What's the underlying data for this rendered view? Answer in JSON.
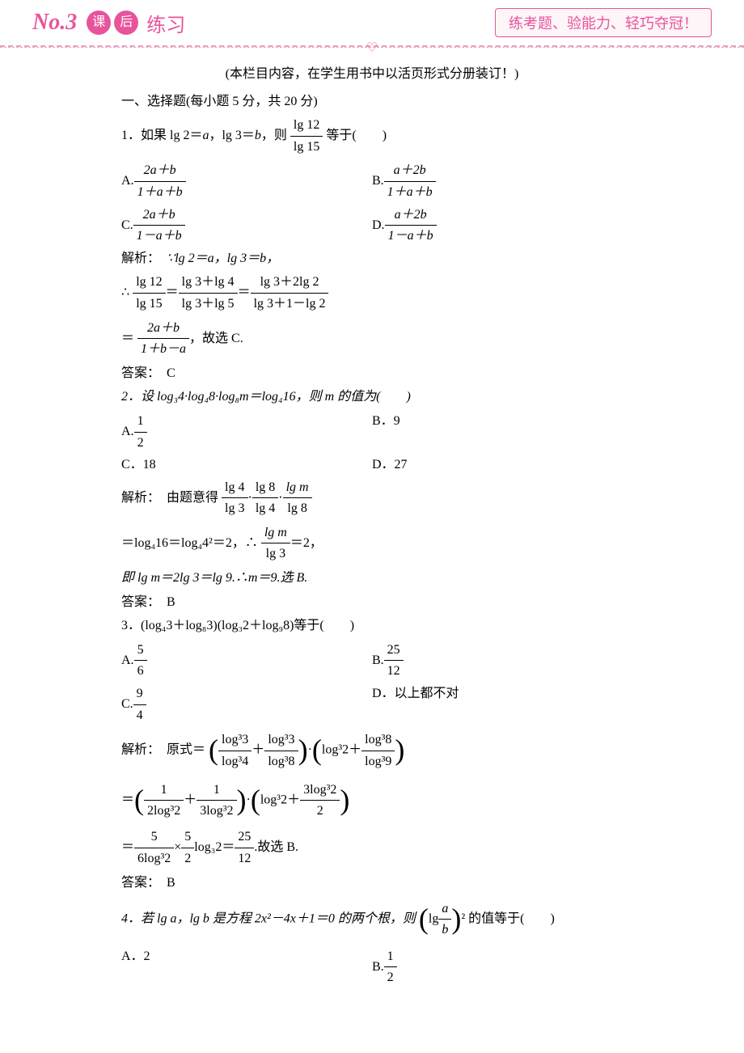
{
  "header": {
    "no": "No.3",
    "icon1": "课",
    "icon2": "后",
    "title": "练习",
    "right_box": "练考题、验能力、轻巧夺冠！"
  },
  "note": "(本栏目内容，在学生用书中以活页形式分册装订！)",
  "section1_title": "一、选择题(每小题 5 分，共 20 分)",
  "q1": {
    "stem_pre": "1．如果 lg 2＝",
    "var_a": "a",
    "stem_mid": "，lg 3＝",
    "var_b": "b",
    "stem_post": "，则",
    "frac_top": "lg 12",
    "frac_bot": "lg 15",
    "stem_end": "等于(　　)",
    "opt_a_num": "2a＋b",
    "opt_a_den": "1＋a＋b",
    "opt_b_num": "a＋2b",
    "opt_b_den": "1＋a＋b",
    "opt_c_num": "2a＋b",
    "opt_c_den": "1－a＋b",
    "opt_d_num": "a＋2b",
    "opt_d_den": "1－a＋b",
    "analysis_label": "解析：",
    "analysis_l1": "∵lg 2＝a，lg 3＝b，",
    "analysis_l2_pre": "∴",
    "f1_top": "lg 12",
    "f1_bot": "lg 15",
    "f2_top": "lg 3＋lg 4",
    "f2_bot": "lg 3＋lg 5",
    "f3_top": "lg 3＋2lg 2",
    "f3_bot": "lg 3＋1－lg 2",
    "analysis_l3_pre": "＝",
    "f4_top": "2a＋b",
    "f4_bot": "1＋b－a",
    "analysis_l3_post": "，故选 C.",
    "answer_label": "答案：",
    "answer": "C"
  },
  "q2": {
    "stem": "2．设 log₃4·log₄8·log₈m＝log₄16，则 m 的值为(　　)",
    "opt_a_label": "A.",
    "opt_a_frac_top": "1",
    "opt_a_frac_bot": "2",
    "opt_b": "B．9",
    "opt_c": "C．18",
    "opt_d": "D．27",
    "analysis_label": "解析：",
    "analysis_pre": "由题意得",
    "f1_top": "lg 4",
    "f1_bot": "lg 3",
    "f2_top": "lg 8",
    "f2_bot": "lg 4",
    "f3_top": "lg m",
    "f3_bot": "lg 8",
    "l2_pre": "＝log₄16＝log₄4²＝2，∴",
    "f4_top": "lg m",
    "f4_bot": "lg 3",
    "l2_post": "＝2，",
    "l3": "即 lg m＝2lg 3＝lg 9.∴m＝9.选 B.",
    "answer_label": "答案：",
    "answer": "B"
  },
  "q3": {
    "stem": "3．(log₄3＋log₈3)(log₃2＋log₉8)等于(　　)",
    "opt_a_label": "A.",
    "opt_a_top": "5",
    "opt_a_bot": "6",
    "opt_b_label": "B.",
    "opt_b_top": "25",
    "opt_b_bot": "12",
    "opt_c_label": "C.",
    "opt_c_top": "9",
    "opt_c_bot": "4",
    "opt_d": "D．以上都不对",
    "analysis_label": "解析：",
    "l1_pre": "原式＝",
    "p1a_top": "log³3",
    "p1a_bot": "log³4",
    "p1b_top": "log³3",
    "p1b_bot": "log³8",
    "p2a": "log³2",
    "p2b_top": "log³8",
    "p2b_bot": "log³9",
    "l2a_top": "1",
    "l2a_bot": "2log³2",
    "l2b_top": "1",
    "l2b_bot": "3log³2",
    "l2c": "log³2",
    "l2d_top": "3log³2",
    "l2d_bot": "2",
    "l3a_top": "5",
    "l3a_bot": "6log³2",
    "l3b_top": "5",
    "l3b_bot": "2",
    "l3c": "log₃2",
    "l3d_top": "25",
    "l3d_bot": "12",
    "l3_post": ".故选 B.",
    "answer_label": "答案：",
    "answer": "B"
  },
  "q4": {
    "stem_pre": "4．若 lg a，lg b 是方程 2x²－4x＋1＝0 的两个根，则",
    "inner_pre": "lg",
    "inner_top": "a",
    "inner_bot": "b",
    "stem_mid": "² 的值等于(　　)",
    "opt_a": "A．2",
    "opt_b_label": "B.",
    "opt_b_top": "1",
    "opt_b_bot": "2"
  },
  "colors": {
    "pink": "#e8549b",
    "text": "#000000",
    "bg": "#ffffff"
  }
}
